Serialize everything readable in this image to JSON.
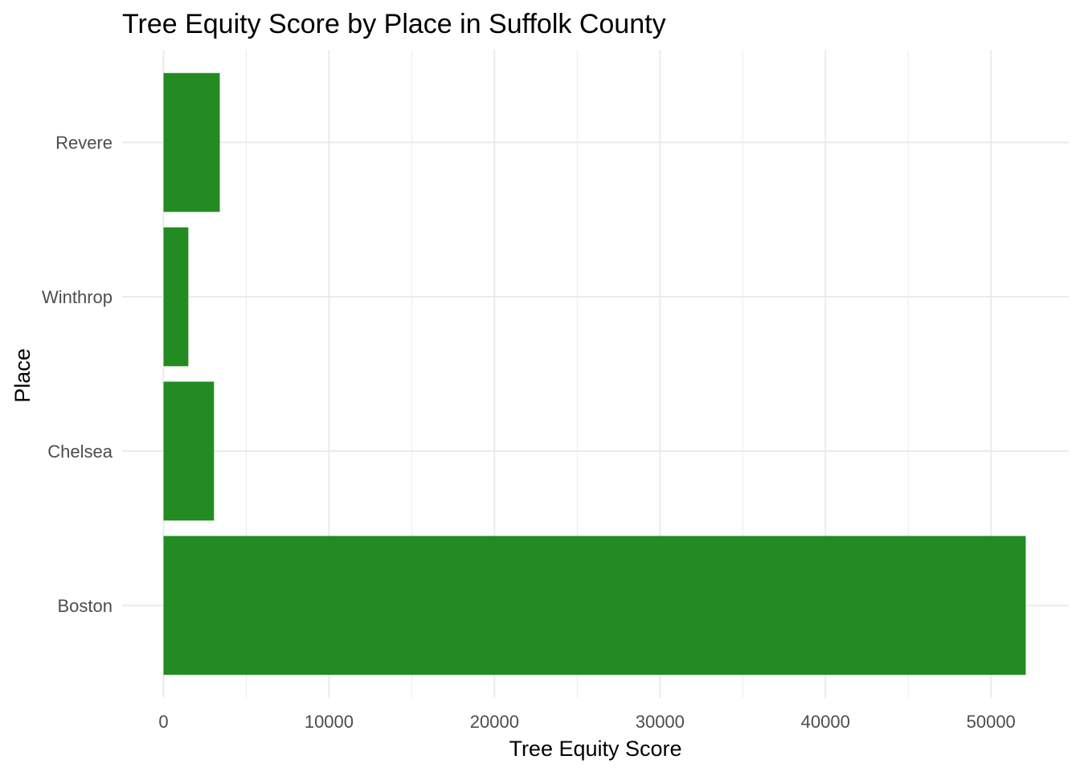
{
  "chart_data": {
    "type": "bar",
    "orientation": "horizontal",
    "title": "Tree Equity Score by Place in Suffolk County",
    "xlabel": "Tree Equity Score",
    "ylabel": "Place",
    "categories": [
      "Boston",
      "Chelsea",
      "Winthrop",
      "Revere"
    ],
    "values": [
      52100,
      3050,
      1500,
      3400
    ],
    "xlim": [
      -2500,
      54700
    ],
    "xticks": [
      0,
      10000,
      20000,
      30000,
      40000,
      50000
    ],
    "xticks_minor": [
      5000,
      15000,
      25000,
      35000,
      45000
    ],
    "grid": true,
    "bar_color": "#228B22"
  }
}
